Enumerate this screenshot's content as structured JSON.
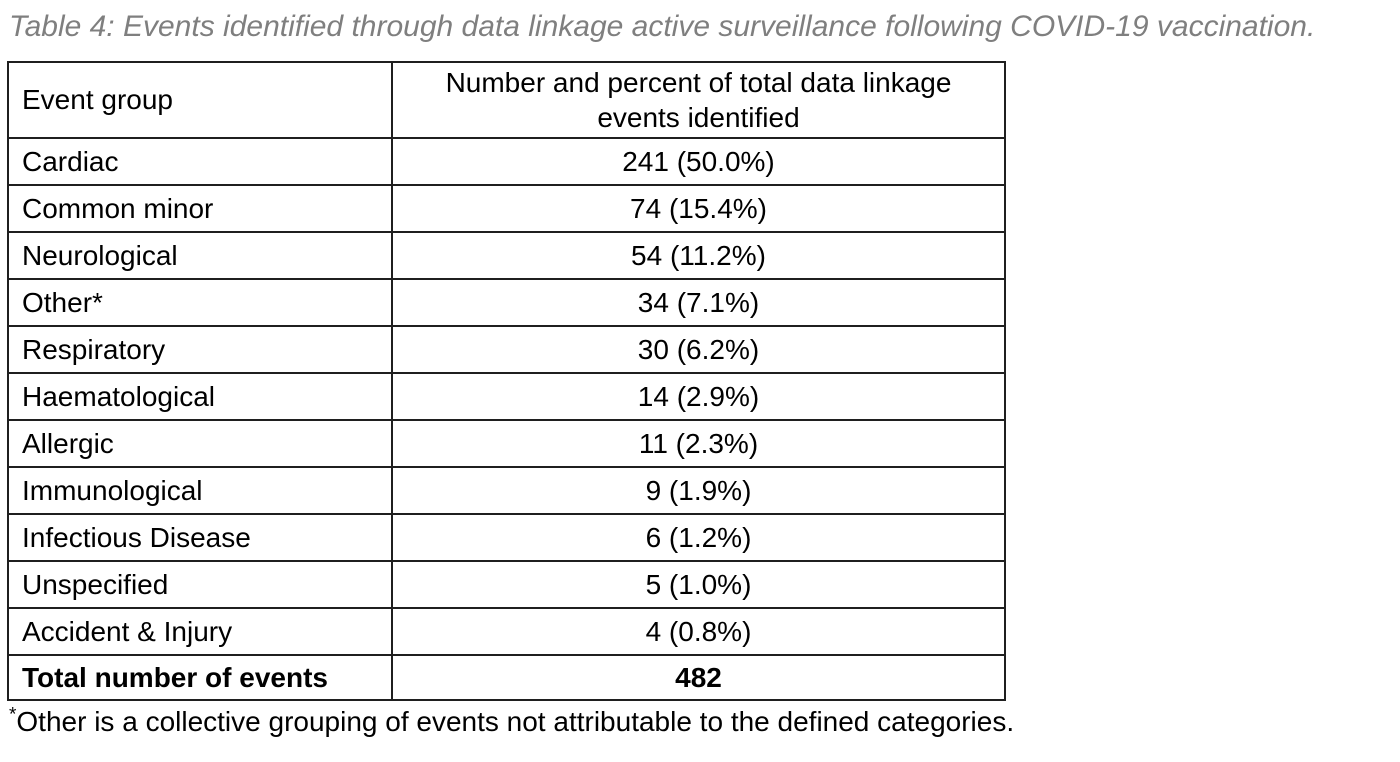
{
  "caption": "Table 4: Events identified through data linkage active surveillance following COVID-19 vaccination.",
  "table": {
    "headers": {
      "group": "Event group",
      "value": "Number and percent of total data linkage events identified"
    },
    "rows": [
      {
        "group": "Cardiac",
        "value": "241 (50.0%)"
      },
      {
        "group": "Common minor",
        "value": "74 (15.4%)"
      },
      {
        "group": "Neurological",
        "value": "54 (11.2%)"
      },
      {
        "group": "Other*",
        "value": "34 (7.1%)"
      },
      {
        "group": "Respiratory",
        "value": "30 (6.2%)"
      },
      {
        "group": "Haematological",
        "value": "14 (2.9%)"
      },
      {
        "group": "Allergic",
        "value": "11 (2.3%)"
      },
      {
        "group": "Immunological",
        "value": "9 (1.9%)"
      },
      {
        "group": "Infectious Disease",
        "value": "6 (1.2%)"
      },
      {
        "group": "Unspecified",
        "value": "5 (1.0%)"
      },
      {
        "group": "Accident & Injury",
        "value": "4 (0.8%)"
      }
    ],
    "total": {
      "label": "Total number of events",
      "value": "482"
    }
  },
  "footnote": {
    "marker": "*",
    "text": "Other is a collective grouping of events not attributable to the defined categories."
  },
  "colors": {
    "caption_gray": "#7f7f7f",
    "border": "#1f1f1f",
    "text": "#000000",
    "background": "#ffffff"
  },
  "chart_data": {
    "type": "table",
    "title": "Table 4: Events identified through data linkage active surveillance following COVID-19 vaccination.",
    "columns": [
      "Event group",
      "Number and percent of total data linkage events identified"
    ],
    "categories": [
      "Cardiac",
      "Common minor",
      "Neurological",
      "Other*",
      "Respiratory",
      "Haematological",
      "Allergic",
      "Immunological",
      "Infectious Disease",
      "Unspecified",
      "Accident & Injury"
    ],
    "counts": [
      241,
      74,
      54,
      34,
      30,
      14,
      11,
      9,
      6,
      5,
      4
    ],
    "percents": [
      50.0,
      15.4,
      11.2,
      7.1,
      6.2,
      2.9,
      2.3,
      1.9,
      1.2,
      1.0,
      0.8
    ],
    "total_label": "Total number of events",
    "total": 482,
    "footnote": "*Other is a collective grouping of events not attributable to the defined categories."
  }
}
